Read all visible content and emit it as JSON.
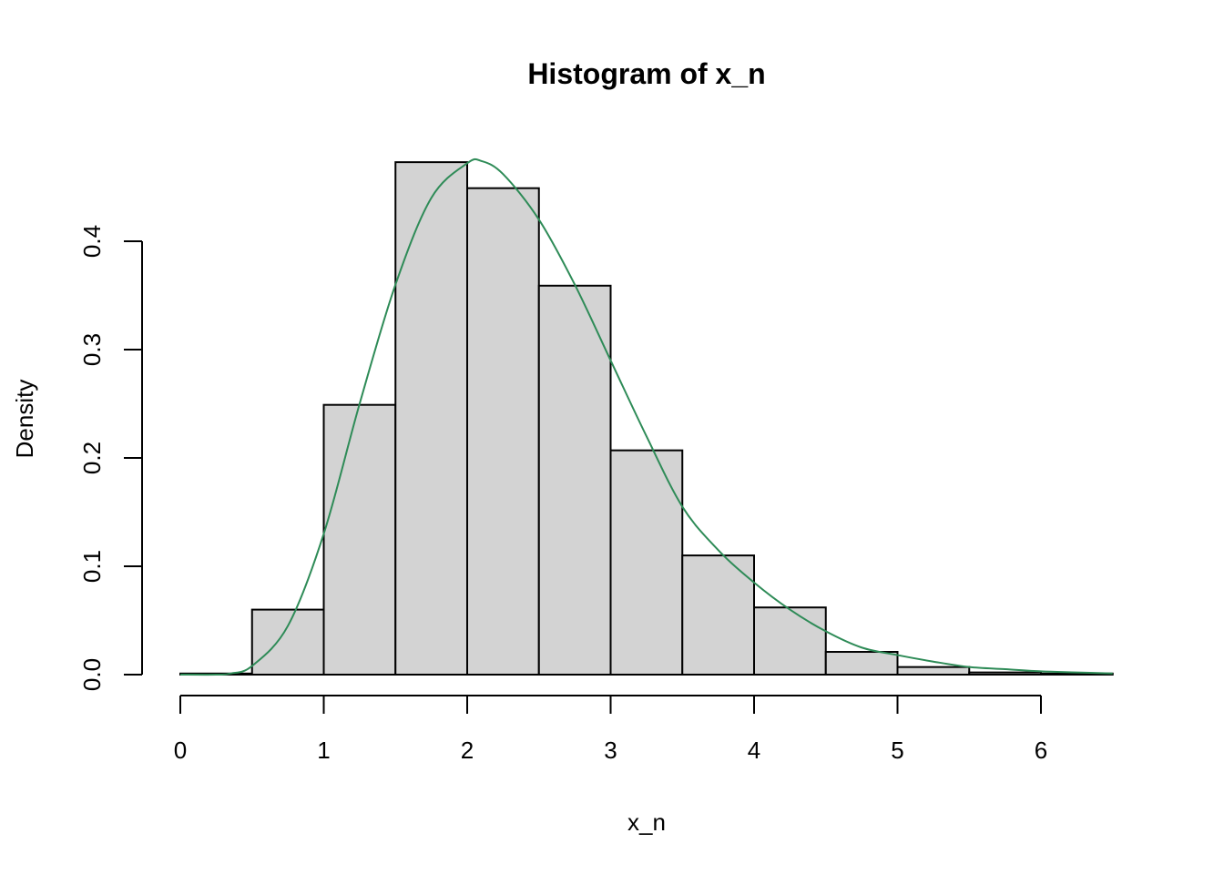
{
  "chart_data": {
    "type": "bar",
    "title": "Histogram of x_n",
    "xlabel": "x_n",
    "ylabel": "Density",
    "xlim": [
      0,
      6.5
    ],
    "ylim": [
      0,
      0.48
    ],
    "x_ticks": [
      "0",
      "1",
      "2",
      "3",
      "4",
      "5",
      "6"
    ],
    "y_ticks": [
      "0.0",
      "0.1",
      "0.2",
      "0.3",
      "0.4"
    ],
    "grid": false,
    "bins": [
      {
        "start": 0.0,
        "end": 0.5,
        "density": 0.001
      },
      {
        "start": 0.5,
        "end": 1.0,
        "density": 0.06
      },
      {
        "start": 1.0,
        "end": 1.5,
        "density": 0.249
      },
      {
        "start": 1.5,
        "end": 2.0,
        "density": 0.473
      },
      {
        "start": 2.0,
        "end": 2.5,
        "density": 0.449
      },
      {
        "start": 2.5,
        "end": 3.0,
        "density": 0.359
      },
      {
        "start": 3.0,
        "end": 3.5,
        "density": 0.207
      },
      {
        "start": 3.5,
        "end": 4.0,
        "density": 0.11
      },
      {
        "start": 4.0,
        "end": 4.5,
        "density": 0.062
      },
      {
        "start": 4.5,
        "end": 5.0,
        "density": 0.021
      },
      {
        "start": 5.0,
        "end": 5.5,
        "density": 0.007
      },
      {
        "start": 5.5,
        "end": 6.0,
        "density": 0.002
      },
      {
        "start": 6.0,
        "end": 6.5,
        "density": 0.001
      }
    ],
    "series": [
      {
        "type": "line",
        "color": "#2e8b57",
        "x": [
          0.0,
          0.25,
          0.35,
          0.5,
          0.75,
          1.0,
          1.25,
          1.5,
          1.75,
          2.0,
          2.1,
          2.25,
          2.5,
          2.75,
          3.0,
          3.25,
          3.5,
          3.75,
          4.0,
          4.25,
          4.5,
          4.75,
          5.0,
          5.25,
          5.5,
          5.75,
          6.0,
          6.25,
          6.5
        ],
        "y": [
          0.0,
          0.0,
          0.001,
          0.008,
          0.045,
          0.13,
          0.25,
          0.36,
          0.44,
          0.472,
          0.474,
          0.462,
          0.42,
          0.36,
          0.29,
          0.22,
          0.155,
          0.115,
          0.085,
          0.06,
          0.04,
          0.025,
          0.018,
          0.012,
          0.007,
          0.005,
          0.003,
          0.002,
          0.001
        ]
      }
    ]
  }
}
